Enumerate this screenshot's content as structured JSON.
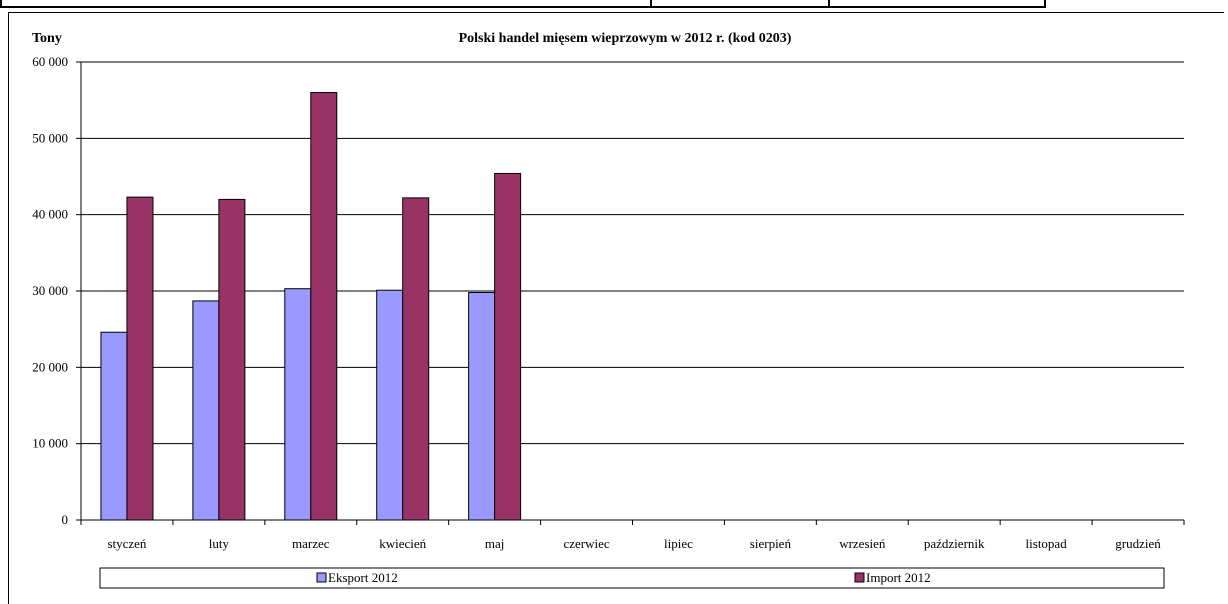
{
  "chart_data": {
    "type": "bar",
    "title": "Polski handel mięsem wieprzowym w 2012 r. (kod 0203)",
    "ylabel": "Tony",
    "xlabel": "",
    "ylim": [
      0,
      60000
    ],
    "yticks": [
      0,
      10000,
      20000,
      30000,
      40000,
      50000,
      60000
    ],
    "ytick_labels": [
      "0",
      "10 000",
      "20 000",
      "30 000",
      "40 000",
      "50 000",
      "60 000"
    ],
    "categories": [
      "styczeń",
      "luty",
      "marzec",
      "kwiecień",
      "maj",
      "czerwiec",
      "lipiec",
      "sierpień",
      "wrzesień",
      "październik",
      "listopad",
      "grudzień"
    ],
    "series": [
      {
        "name": "Eksport 2012",
        "color": "#9999ff",
        "values": [
          24600,
          28700,
          30300,
          30100,
          29800,
          null,
          null,
          null,
          null,
          null,
          null,
          null
        ]
      },
      {
        "name": "Import 2012",
        "color": "#993366",
        "values": [
          42300,
          42000,
          56000,
          42200,
          45400,
          null,
          null,
          null,
          null,
          null,
          null,
          null
        ]
      }
    ],
    "grid": true,
    "legend": "bottom"
  }
}
